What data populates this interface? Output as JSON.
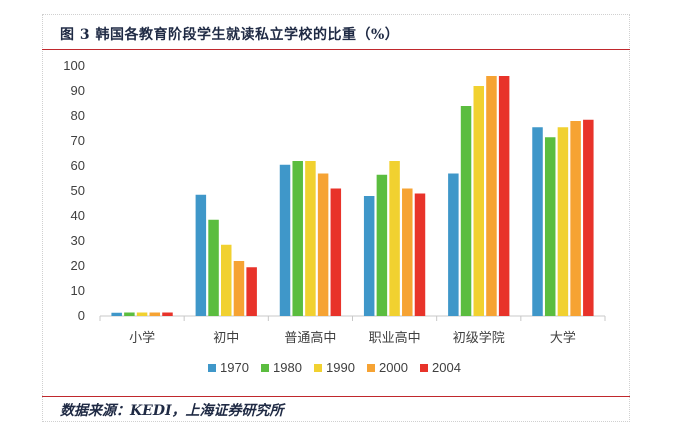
{
  "title": "图 3 韩国各教育阶段学生就读私立学校的比重（%）",
  "source": "数据来源：KEDI，上海证券研究所",
  "chart_data": {
    "type": "bar",
    "categories": [
      "小学",
      "初中",
      "普通高中",
      "职业高中",
      "初级学院",
      "大学"
    ],
    "series": [
      {
        "name": "1970",
        "color": "#3f97c9",
        "values": [
          1.3,
          48.5,
          60.5,
          48,
          57,
          75.5
        ]
      },
      {
        "name": "1980",
        "color": "#5bbd3f",
        "values": [
          1.4,
          38.5,
          62,
          56.5,
          84,
          71.5
        ]
      },
      {
        "name": "1990",
        "color": "#f1d130",
        "values": [
          1.4,
          28.5,
          62,
          62,
          92,
          75.5
        ]
      },
      {
        "name": "2000",
        "color": "#f6a333",
        "values": [
          1.4,
          22,
          57,
          51,
          96,
          78
        ]
      },
      {
        "name": "2004",
        "color": "#e8332a",
        "values": [
          1.4,
          19.5,
          51,
          49,
          96,
          78.5
        ]
      }
    ],
    "ylim": [
      0,
      100
    ],
    "yticks": [
      0,
      10,
      20,
      30,
      40,
      50,
      60,
      70,
      80,
      90,
      100
    ],
    "grid": false,
    "legend_position": "bottom"
  }
}
